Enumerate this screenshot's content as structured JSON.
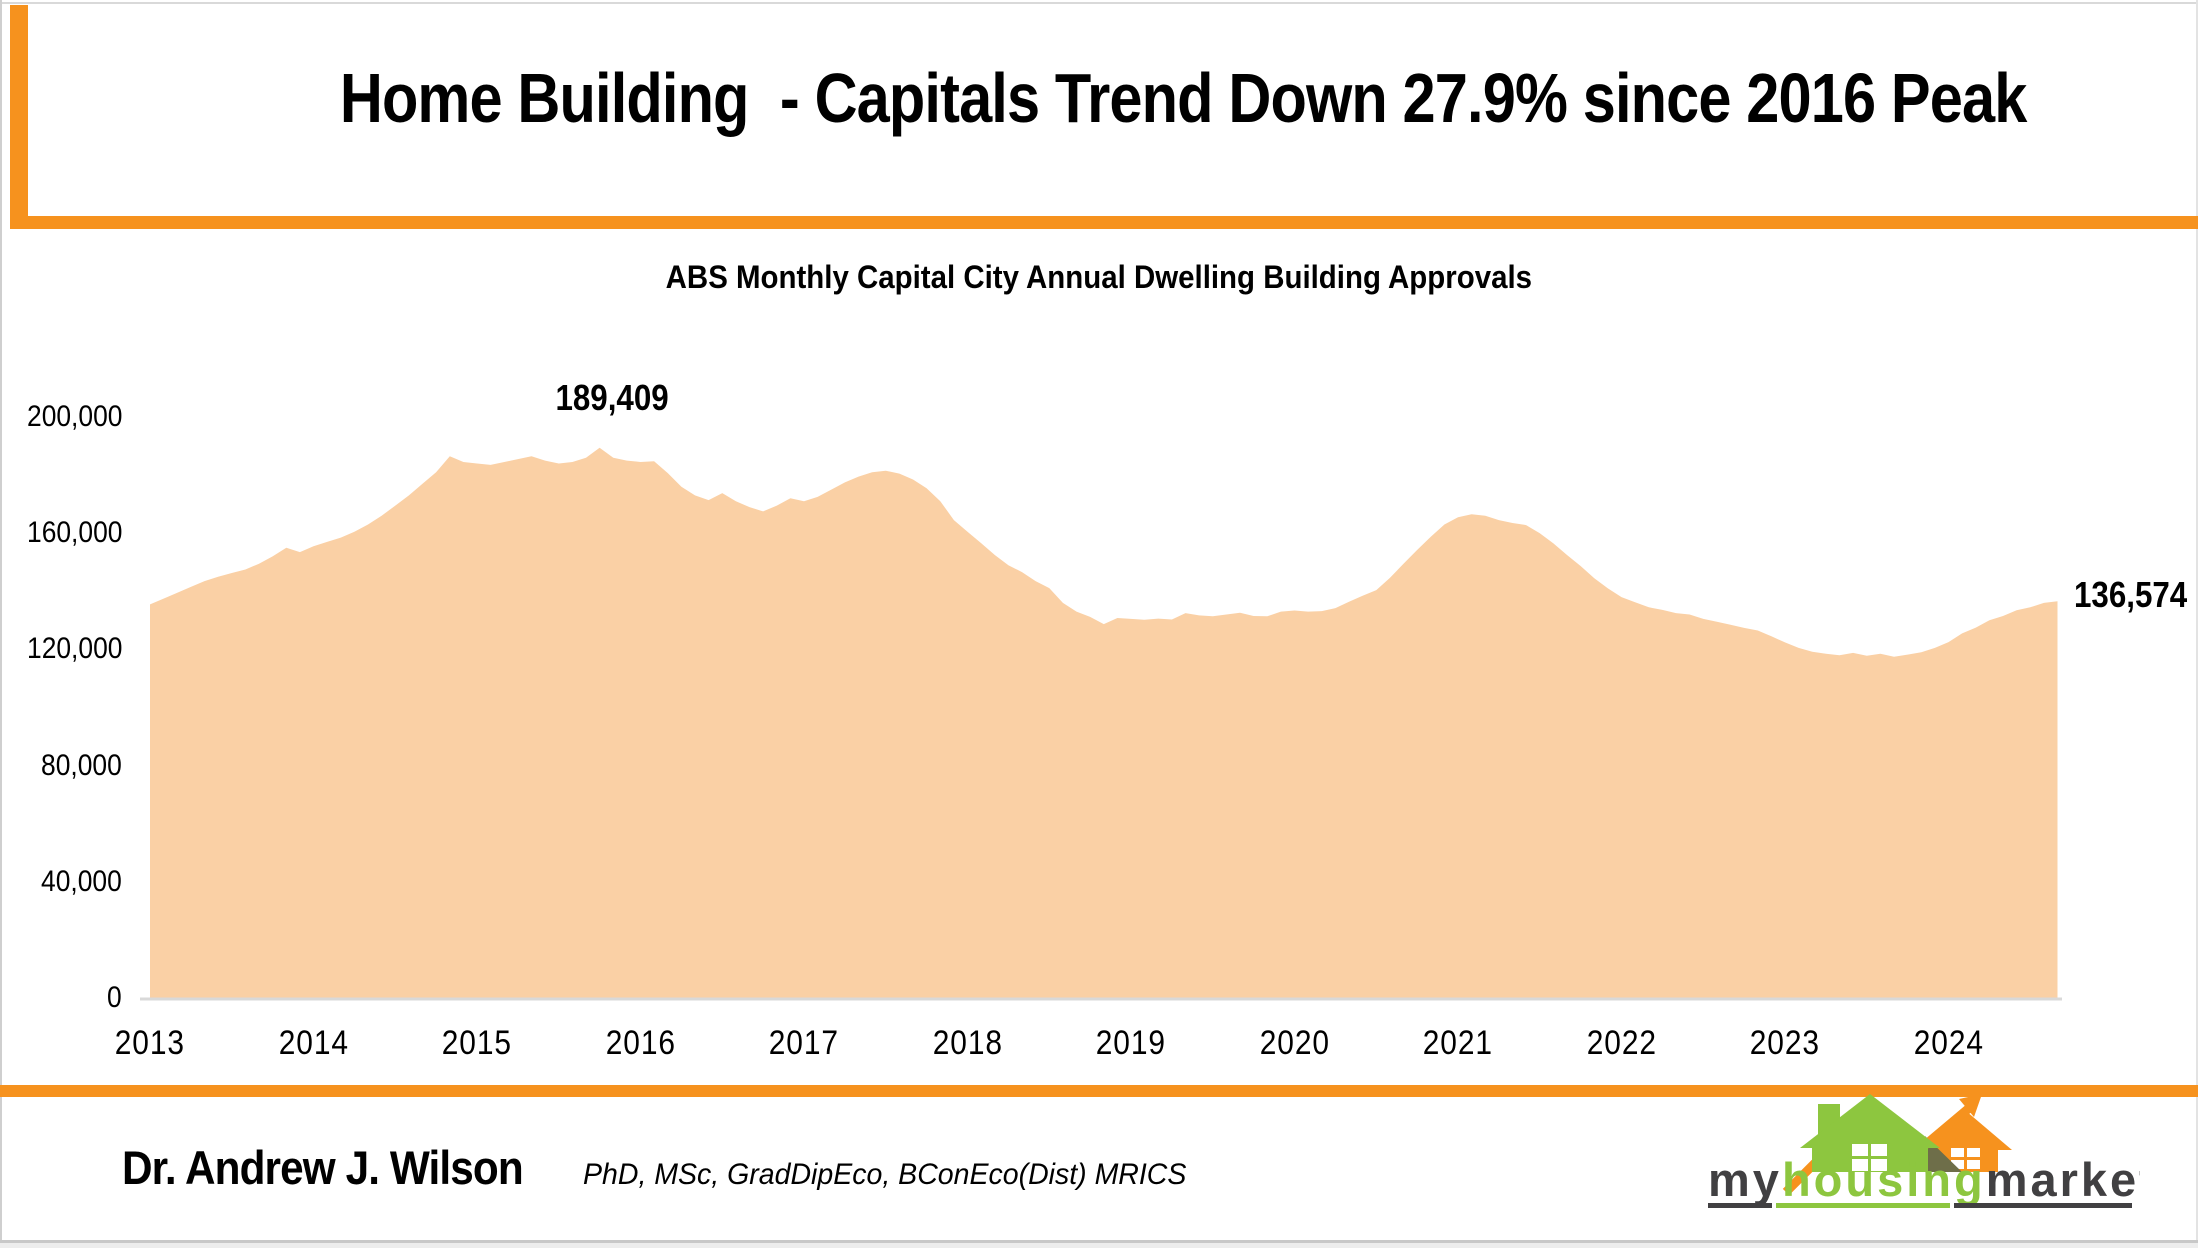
{
  "header": {
    "title": "Home Building  - Capitals Trend Down 27.9% since 2016 Peak"
  },
  "chart": {
    "title": "ABS Monthly Capital City Annual Dwelling Building Approvals"
  },
  "chart_data": {
    "type": "area",
    "title": "ABS Monthly Capital City Annual Dwelling Building Approvals",
    "frequency": "monthly",
    "x_start": "2013-01",
    "x_end": "2024-09",
    "unit": "annual dwelling building approvals",
    "grid": false,
    "legend": "none",
    "area_color": "#FAD0A5",
    "axis_line_color": "#D9D9D9",
    "ylim": [
      0,
      200000
    ],
    "y_tick_values": [
      0,
      40000,
      80000,
      120000,
      160000,
      200000
    ],
    "y_ticks": [
      "0",
      "40,000",
      "80,000",
      "120,000",
      "160,000",
      "200,000"
    ],
    "x_ticks": [
      "2013",
      "2014",
      "2015",
      "2016",
      "2017",
      "2018",
      "2019",
      "2020",
      "2021",
      "2022",
      "2023",
      "2024"
    ],
    "values": [
      135500,
      137500,
      139500,
      141500,
      143500,
      145000,
      146300,
      147500,
      149500,
      152000,
      155000,
      153500,
      155500,
      157000,
      158500,
      160500,
      163000,
      166000,
      169500,
      173000,
      177000,
      181000,
      186500,
      184500,
      184000,
      183500,
      184500,
      185500,
      186500,
      185000,
      184000,
      184500,
      186000,
      189409,
      186000,
      185000,
      184500,
      184800,
      180700,
      176000,
      173000,
      171400,
      173800,
      171000,
      169000,
      167500,
      169500,
      172000,
      171000,
      172500,
      175000,
      177500,
      179500,
      181000,
      181500,
      180500,
      178500,
      175500,
      171000,
      164500,
      160500,
      156600,
      152500,
      149000,
      146600,
      143500,
      141100,
      136000,
      133000,
      131200,
      128700,
      130800,
      130500,
      130200,
      130600,
      130300,
      132500,
      131700,
      131400,
      132000,
      132600,
      131500,
      131400,
      133000,
      133400,
      133000,
      133200,
      134200,
      136400,
      138500,
      140400,
      144600,
      149500,
      154200,
      158800,
      163000,
      165500,
      166500,
      166000,
      164500,
      163500,
      162800,
      160000,
      156500,
      152500,
      148700,
      144500,
      141000,
      138000,
      136200,
      134500,
      133600,
      132500,
      132000,
      130500,
      129500,
      128500,
      127400,
      126500,
      124500,
      122400,
      120500,
      119200,
      118500,
      118000,
      118800,
      117800,
      118500,
      117500,
      118200,
      119000,
      120500,
      122500,
      125500,
      127500,
      130000,
      131500,
      133500,
      134500,
      136000,
      136574
    ],
    "annotations": [
      {
        "label": "189,409",
        "value": 189409,
        "x": "2015-10",
        "role": "peak"
      },
      {
        "label": "136,574",
        "value": 136574,
        "x": "2024-09",
        "role": "latest"
      }
    ]
  },
  "footer": {
    "author": "Dr. Andrew J. Wilson",
    "credentials": "PhD, MSc, GradDipEco, BConEco(Dist) MRICS"
  },
  "logo": {
    "word_my": "my",
    "word_housing": "housing",
    "word_market": "market",
    "green": "#8DC63F",
    "orange": "#F6921E",
    "dark": "#414042"
  },
  "colors": {
    "accent_orange": "#F6921E",
    "area_fill": "#FAD0A5",
    "axis_line": "#D9D9D9"
  }
}
